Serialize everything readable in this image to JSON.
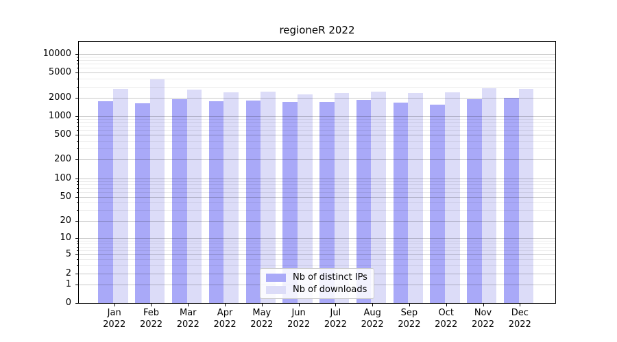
{
  "chart_data": {
    "type": "bar",
    "title": "regioneR 2022",
    "scale": "log1p",
    "grid": {
      "major": true,
      "minor": true
    },
    "legend_position": "bottom-center",
    "x": {
      "categories": [
        "Jan",
        "Feb",
        "Mar",
        "Apr",
        "May",
        "Jun",
        "Jul",
        "Aug",
        "Sep",
        "Oct",
        "Nov",
        "Dec"
      ],
      "year_label": "2022"
    },
    "series": [
      {
        "name": "Nb of distinct IPs",
        "color": "#a9a9f8",
        "values": [
          1760,
          1630,
          1900,
          1730,
          1780,
          1680,
          1700,
          1850,
          1650,
          1540,
          1900,
          1980
        ]
      },
      {
        "name": "Nb of downloads",
        "color": "#dcdcf8",
        "values": [
          2720,
          3920,
          2700,
          2400,
          2500,
          2260,
          2380,
          2480,
          2380,
          2400,
          2830,
          2780
        ]
      }
    ],
    "y_axis": {
      "major_ticks": [
        0,
        1,
        2,
        5,
        10,
        20,
        50,
        100,
        200,
        500,
        1000,
        2000,
        5000,
        10000
      ],
      "major_tick_labels": [
        "0",
        "1",
        "2",
        "5",
        "10",
        "20",
        "50",
        "100",
        "200",
        "500",
        "1000",
        "2000",
        "5000",
        "10000"
      ],
      "minor_ticks": [
        3,
        4,
        6,
        7,
        8,
        9,
        30,
        40,
        60,
        70,
        80,
        90,
        300,
        400,
        600,
        700,
        800,
        900,
        3000,
        4000,
        6000,
        7000,
        8000,
        9000
      ],
      "range_top": 15800
    },
    "colors": {
      "axis": "#000000",
      "background": "#ffffff",
      "grid_major": "rgba(0,0,0,0.22)",
      "grid_minor": "rgba(0,0,0,0.08)"
    }
  }
}
